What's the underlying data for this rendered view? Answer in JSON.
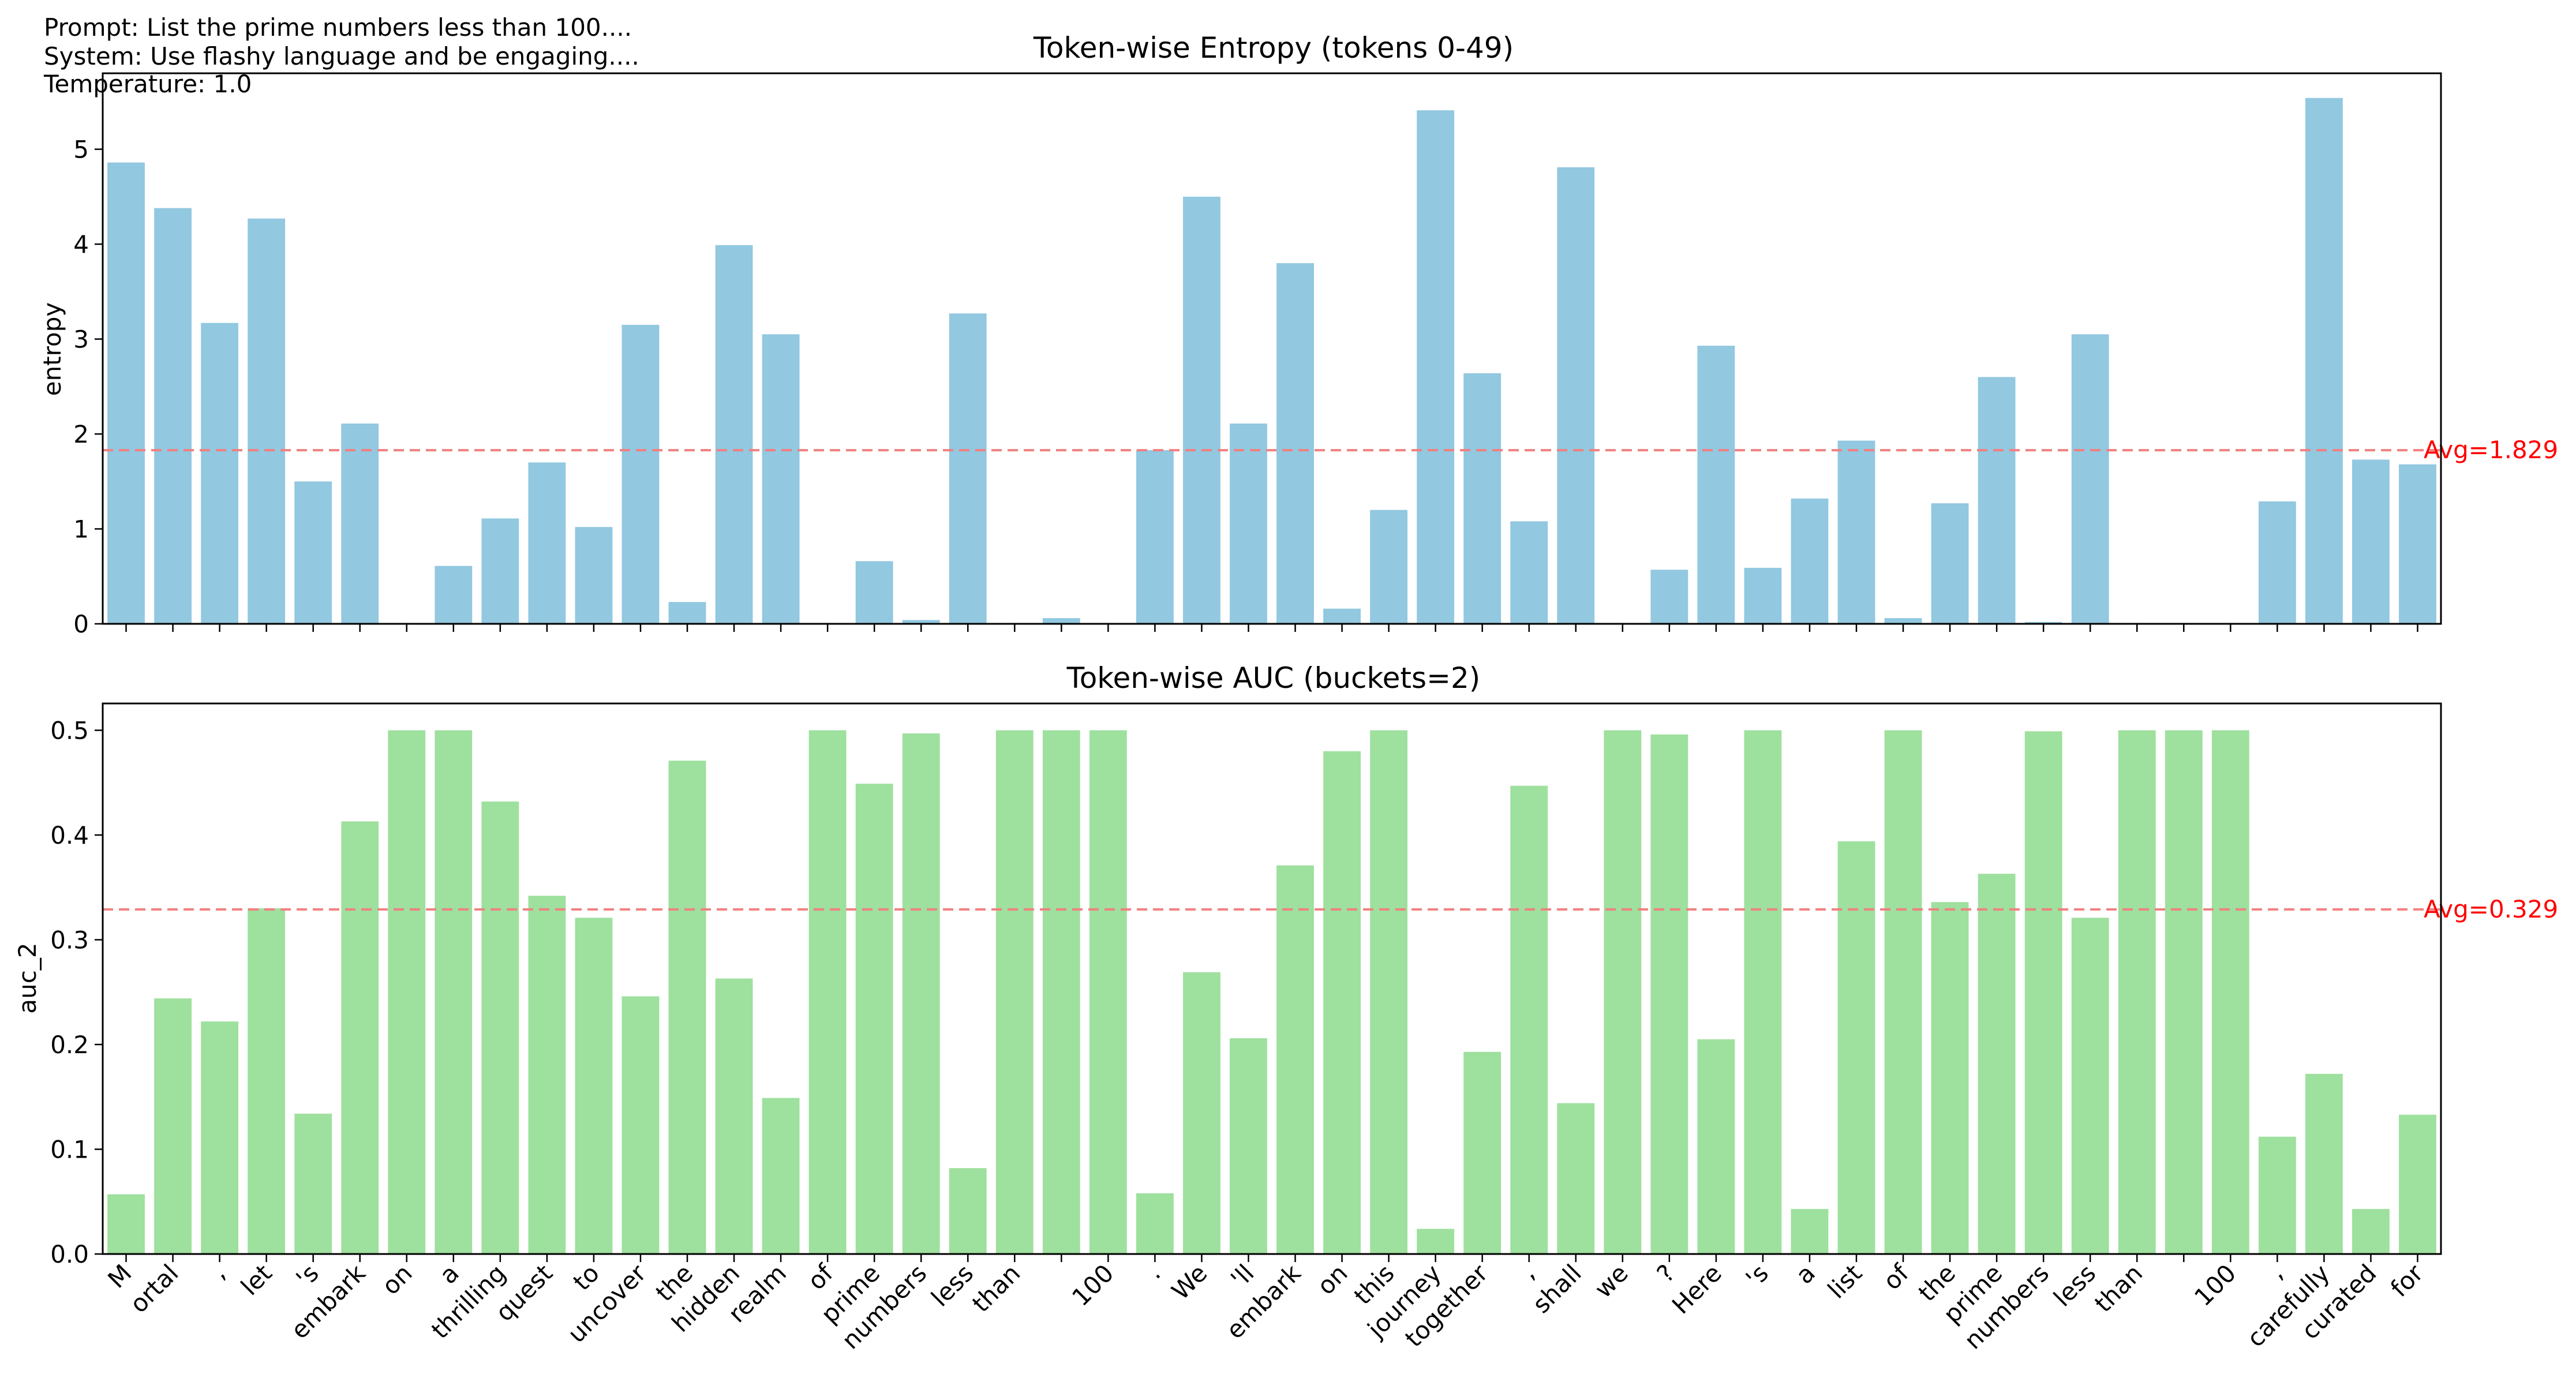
{
  "header": {
    "prompt_line": "Prompt: List the prime numbers less than 100....",
    "system_line": "System: Use flashy language and be engaging....",
    "temperature_line": "Temperature: 1.0"
  },
  "colors": {
    "entropy_bar": "#92c8e0",
    "auc_bar": "#9ee09e",
    "avg_line": "#f08080",
    "avg_text": "#ff0000",
    "axis": "#000000"
  },
  "chart_data": [
    {
      "type": "bar",
      "title": "Token-wise Entropy (tokens 0-49)",
      "xlabel": "",
      "ylabel": "entropy",
      "ylim": [
        0,
        5.8
      ],
      "yticks": [
        "0",
        "1",
        "2",
        "3",
        "4",
        "5"
      ],
      "show_xtick_labels": false,
      "avg_value": 1.829,
      "avg_label": "Avg=1.829",
      "categories": [
        "M",
        "ortal",
        ",",
        "let",
        "'s",
        "embark",
        "on",
        "a",
        "thrilling",
        "quest",
        "to",
        "uncover",
        "the",
        "hidden",
        "realm",
        "of",
        "prime",
        "numbers",
        "less",
        "than",
        " ",
        "100",
        ".",
        "We",
        "'ll",
        "embark",
        "on",
        "this",
        "journey",
        "together",
        ",",
        "shall",
        "we",
        "?",
        "Here",
        "'s",
        "a",
        "list",
        "of",
        "the",
        "prime",
        "numbers",
        "less",
        "than",
        " ",
        "100",
        ",",
        "carefully",
        "curated",
        "for"
      ],
      "values": [
        4.86,
        4.38,
        3.17,
        4.27,
        1.5,
        2.11,
        0.0,
        0.61,
        1.11,
        1.7,
        1.02,
        3.15,
        0.23,
        3.99,
        3.05,
        0.0,
        0.66,
        0.04,
        3.27,
        0.0,
        0.06,
        0.0,
        1.83,
        4.5,
        2.11,
        3.8,
        0.16,
        1.2,
        5.41,
        2.64,
        1.08,
        4.81,
        0.0,
        0.57,
        2.93,
        0.59,
        1.32,
        1.93,
        0.06,
        1.27,
        2.6,
        0.02,
        3.05,
        0.0,
        0.0,
        0.0,
        1.29,
        5.54,
        1.73,
        1.68
      ]
    },
    {
      "type": "bar",
      "title": "Token-wise AUC (buckets=2)",
      "xlabel": "",
      "ylabel": "auc_2",
      "ylim": [
        0,
        0.5256
      ],
      "yticks": [
        "0.0",
        "0.1",
        "0.2",
        "0.3",
        "0.4",
        "0.5"
      ],
      "show_xtick_labels": true,
      "avg_value": 0.329,
      "avg_label": "Avg=0.329",
      "categories": [
        "M",
        "ortal",
        ",",
        "let",
        "'s",
        "embark",
        "on",
        "a",
        "thrilling",
        "quest",
        "to",
        "uncover",
        "the",
        "hidden",
        "realm",
        "of",
        "prime",
        "numbers",
        "less",
        "than",
        " ",
        "100",
        ".",
        "We",
        "'ll",
        "embark",
        "on",
        "this",
        "journey",
        "together",
        ",",
        "shall",
        "we",
        "?",
        "Here",
        "'s",
        "a",
        "list",
        "of",
        "the",
        "prime",
        "numbers",
        "less",
        "than",
        " ",
        "100",
        ",",
        "carefully",
        "curated",
        "for"
      ],
      "values": [
        0.057,
        0.244,
        0.222,
        0.33,
        0.134,
        0.413,
        0.5,
        0.5,
        0.432,
        0.342,
        0.321,
        0.246,
        0.471,
        0.263,
        0.149,
        0.5,
        0.449,
        0.497,
        0.082,
        0.5,
        0.5,
        0.5,
        0.058,
        0.269,
        0.206,
        0.371,
        0.48,
        0.5,
        0.024,
        0.193,
        0.447,
        0.144,
        0.5,
        0.496,
        0.205,
        0.5,
        0.043,
        0.394,
        0.5,
        0.336,
        0.363,
        0.499,
        0.321,
        0.5,
        0.5,
        0.5,
        0.112,
        0.172,
        0.043,
        0.133
      ]
    }
  ]
}
